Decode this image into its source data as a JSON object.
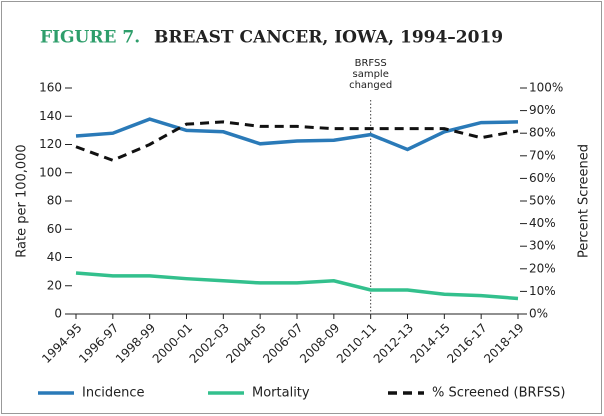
{
  "chart_data": {
    "type": "line",
    "figure_label": "FIGURE 7.",
    "title": "BREAST CANCER, IOWA, 1994–2019",
    "y_label": "Rate per 100,000",
    "y2_label": "Percent Screened",
    "annotation_lines": [
      "BRFSS",
      "sample",
      "changed"
    ],
    "categories": [
      "1994-95",
      "1996-97",
      "1998-99",
      "2000-01",
      "2002-03",
      "2004-05",
      "2006-07",
      "2008-09",
      "2010-11",
      "2012-13",
      "2014-15",
      "2016-17",
      "2018-19"
    ],
    "series": [
      {
        "name": "Incidence",
        "color": "#2a7ab8",
        "values": [
          126,
          128,
          138,
          130,
          129,
          120.5,
          122.5,
          123,
          127,
          116.5,
          129,
          135.5,
          136
        ]
      },
      {
        "name": "Mortality",
        "color": "#33c08d",
        "values": [
          29,
          27,
          27,
          25,
          23.5,
          22,
          22,
          23.5,
          17,
          17,
          14,
          13,
          11
        ]
      },
      {
        "name": "% Screened (BRFSS)",
        "color": "#111111",
        "dashed": true,
        "axis": "y2",
        "values": [
          74,
          68,
          75,
          84,
          85,
          83,
          83,
          82,
          82,
          82,
          82,
          78,
          81
        ]
      }
    ],
    "ylim": [
      0,
      160
    ],
    "yticks": [
      0,
      20,
      40,
      60,
      80,
      100,
      120,
      140,
      160
    ],
    "y2lim": [
      0,
      100
    ],
    "y2ticks": [
      {
        "value": 0,
        "label": "0%"
      },
      {
        "value": 10,
        "label": "10%"
      },
      {
        "value": 20,
        "label": "20%"
      },
      {
        "value": 30,
        "label": "30%"
      },
      {
        "value": 40,
        "label": "40%"
      },
      {
        "value": 50,
        "label": "50%"
      },
      {
        "value": 60,
        "label": "60%"
      },
      {
        "value": 70,
        "label": "70%"
      },
      {
        "value": 80,
        "label": "80%"
      },
      {
        "value": 90,
        "label": "90%"
      },
      {
        "value": 100,
        "label": "100%"
      }
    ],
    "grid": false,
    "legend": "bottom"
  }
}
